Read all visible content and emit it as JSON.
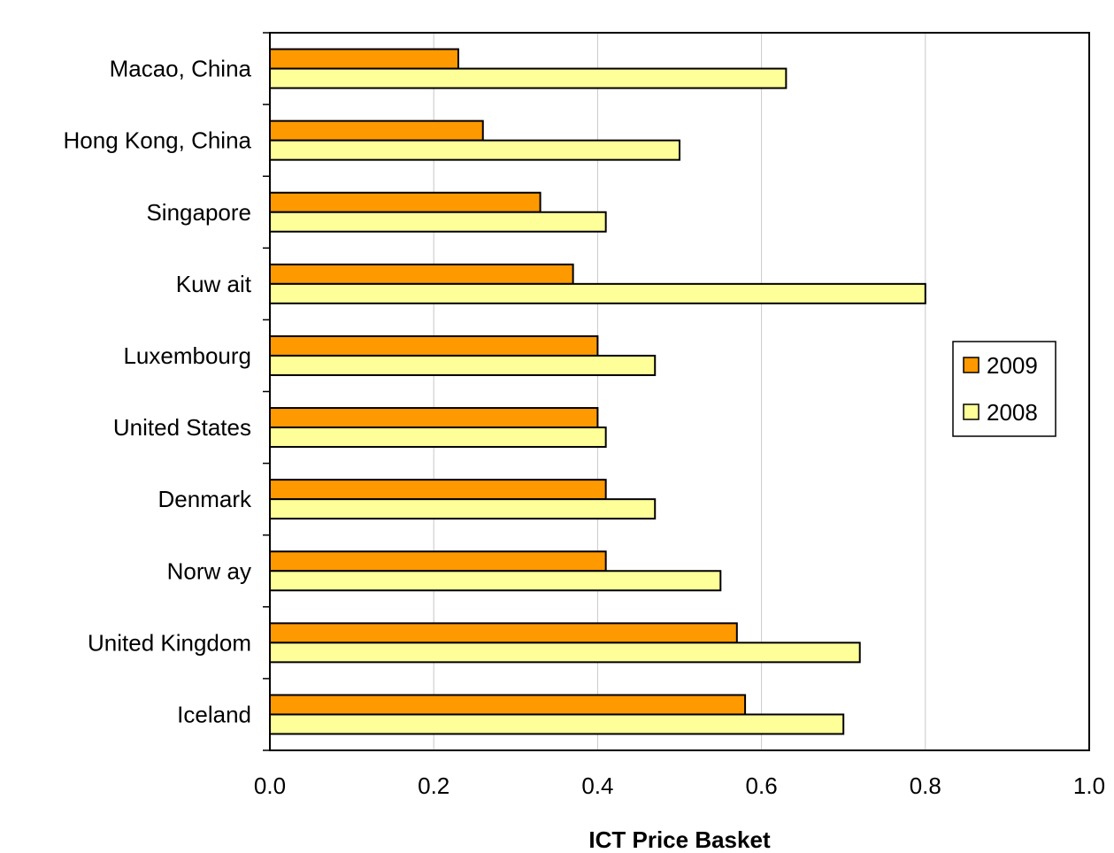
{
  "chart_data": {
    "type": "bar",
    "orientation": "horizontal",
    "categories": [
      "Macao, China",
      "Hong Kong, China",
      "Singapore",
      "Kuw ait",
      "Luxembourg",
      "United States",
      "Denmark",
      "Norw ay",
      "United Kingdom",
      "Iceland"
    ],
    "series": [
      {
        "name": "2009",
        "color": "#ff9900",
        "values": [
          0.23,
          0.26,
          0.33,
          0.37,
          0.4,
          0.4,
          0.41,
          0.41,
          0.57,
          0.58
        ]
      },
      {
        "name": "2008",
        "color": "#ffff99",
        "values": [
          0.63,
          0.5,
          0.41,
          0.8,
          0.47,
          0.41,
          0.47,
          0.55,
          0.72,
          0.7
        ]
      }
    ],
    "title": "",
    "xlabel": "ICT Price Basket",
    "ylabel": "",
    "xlim": [
      0,
      1.0
    ],
    "xticks": [
      "0.0",
      "0.2",
      "0.4",
      "0.6",
      "0.8",
      "1.0"
    ],
    "grid": "vertical",
    "legend_position": "right"
  }
}
